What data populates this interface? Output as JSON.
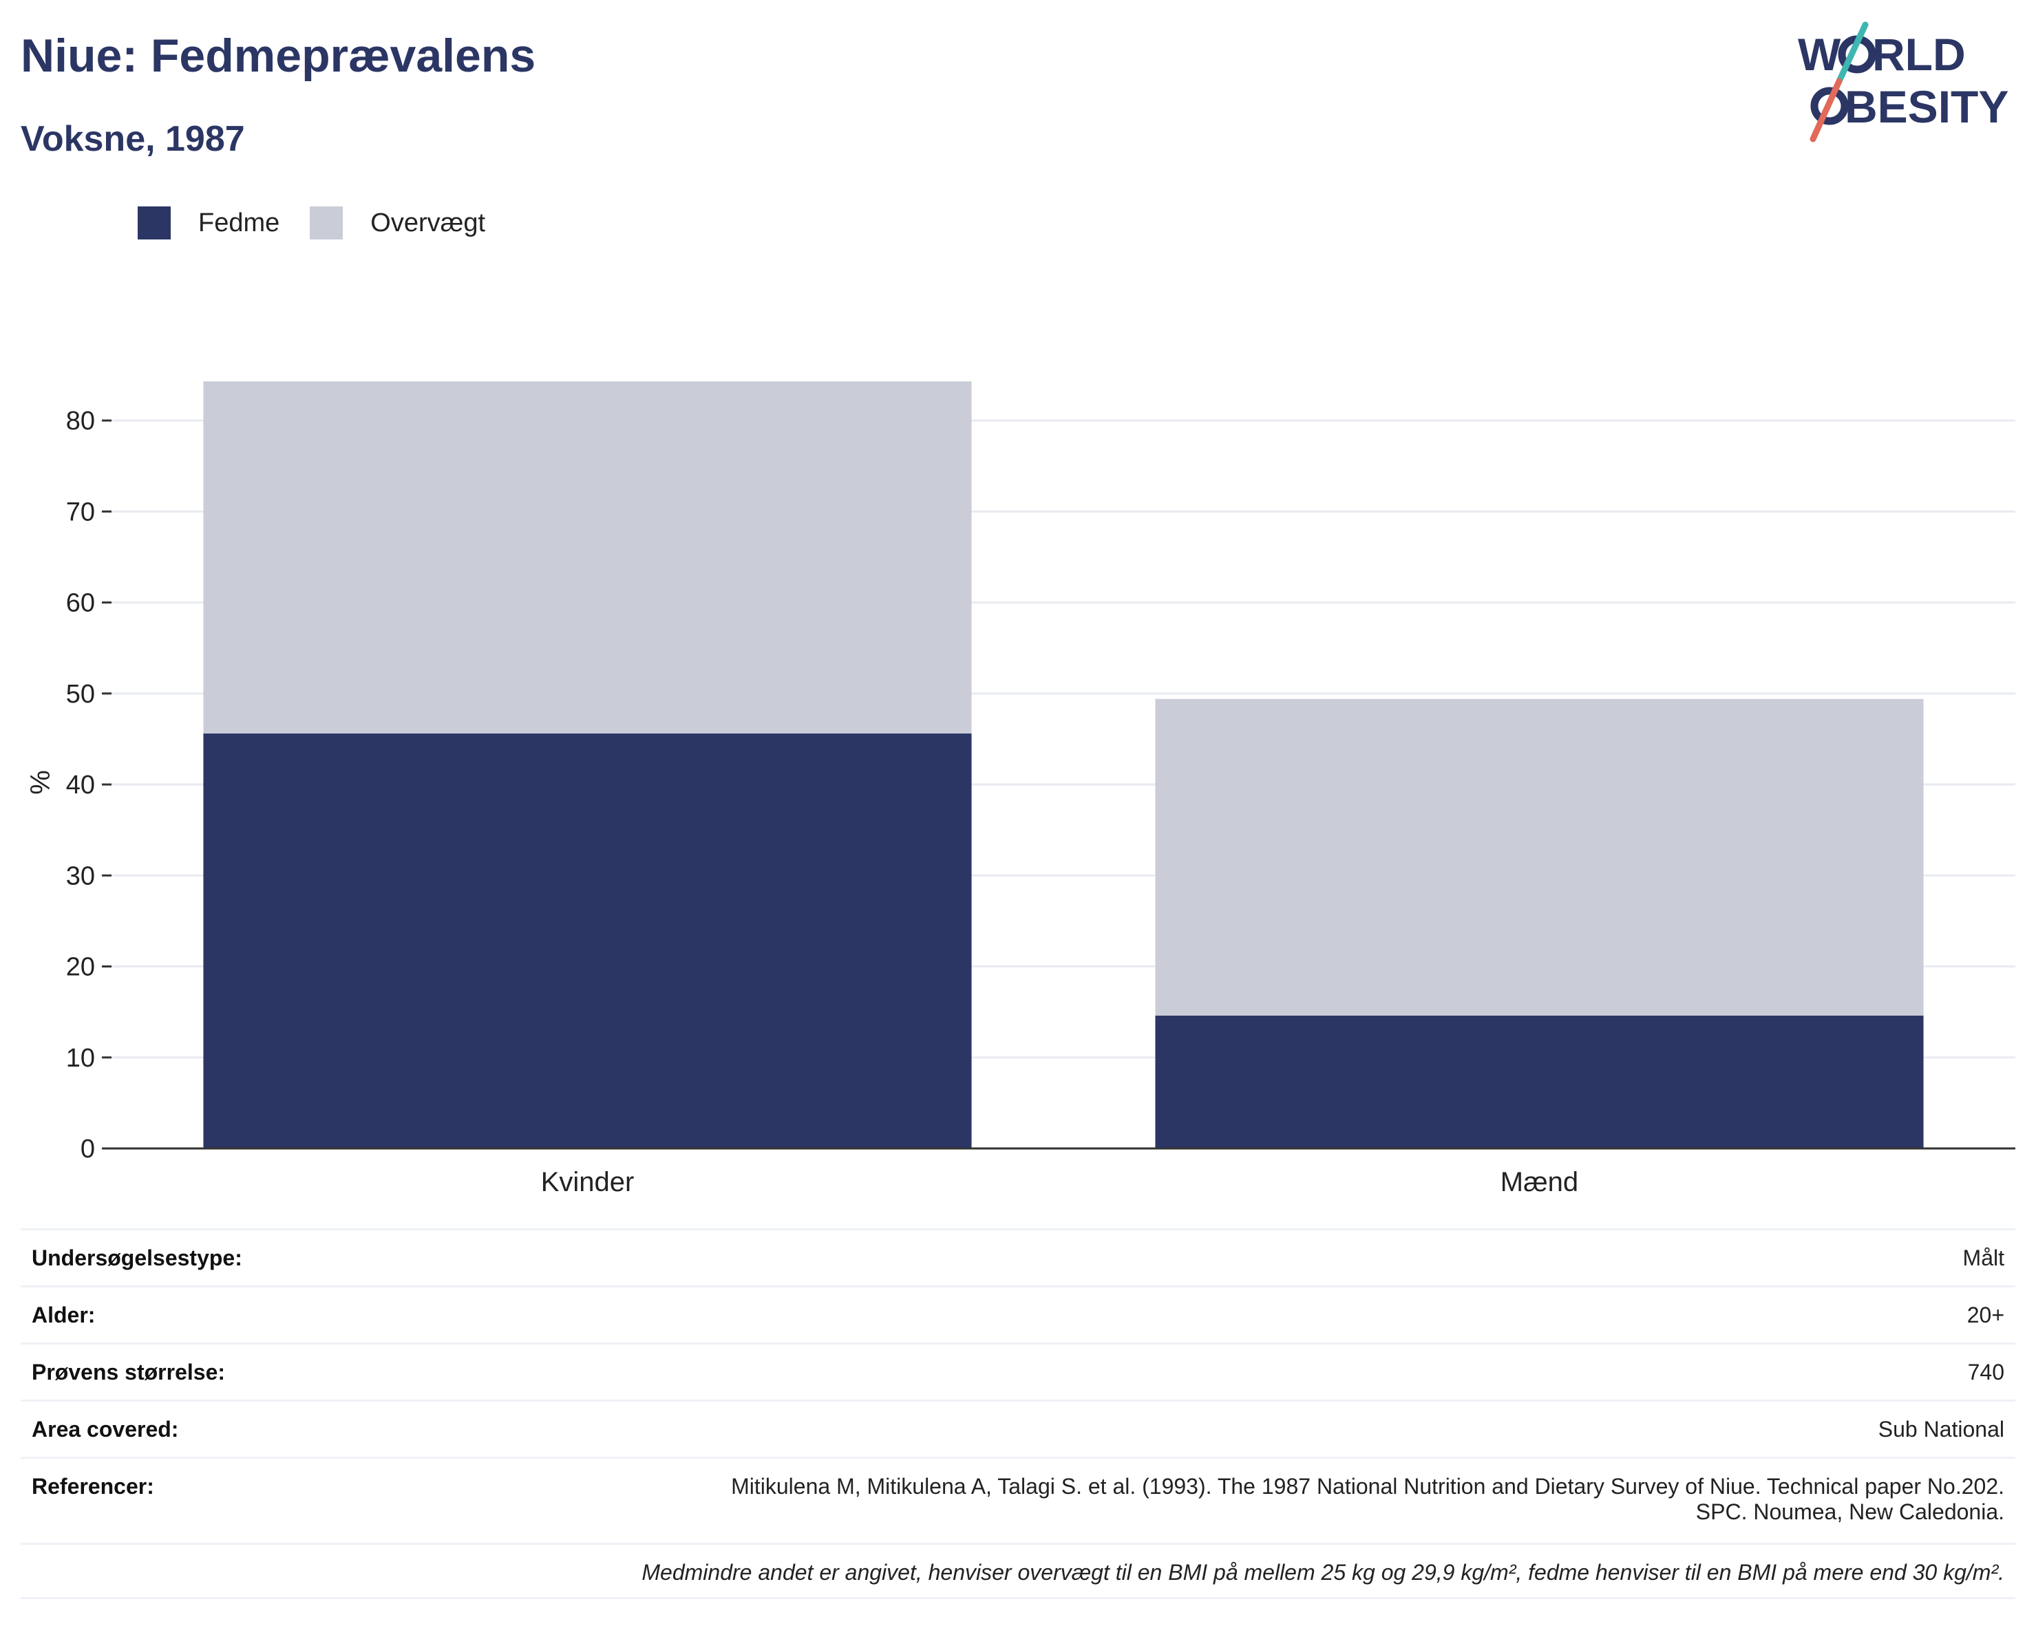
{
  "header": {
    "title": "Niue: Fedmeprævalens",
    "subtitle": "Voksne, 1987"
  },
  "logo": {
    "line1": "W RLD",
    "line2": "BESITY",
    "text": "WORLD OBESITY"
  },
  "legend": {
    "items": [
      {
        "label": "Fedme",
        "color": "#2b3664"
      },
      {
        "label": "Overvægt",
        "color": "#cacdd8"
      }
    ]
  },
  "chart_data": {
    "type": "bar",
    "stacked": true,
    "categories": [
      "Kvinder",
      "Mænd"
    ],
    "series": [
      {
        "name": "Fedme",
        "values": [
          45.6,
          14.6
        ],
        "color": "#2b3664"
      },
      {
        "name": "Overvægt",
        "values": [
          38.7,
          34.8
        ],
        "color": "#cacdd8"
      }
    ],
    "ylabel": "%",
    "ylim": [
      0,
      85
    ],
    "yticks": [
      0,
      10,
      20,
      30,
      40,
      50,
      60,
      70,
      80
    ],
    "grid": true,
    "legend_position": "top-left"
  },
  "info": {
    "rows": [
      {
        "label": "Undersøgelsestype:",
        "value": "Målt"
      },
      {
        "label": "Alder:",
        "value": "20+"
      },
      {
        "label": "Prøvens størrelse:",
        "value": "740"
      },
      {
        "label": "Area covered:",
        "value": "Sub National"
      },
      {
        "label": "Referencer:",
        "value_line1": "Mitikulena M, Mitikulena A, Talagi S. et al. (1993). The 1987 National Nutrition and Dietary Survey of Niue. Technical paper No.202.",
        "value_line2": "SPC. Noumea, New Caledonia."
      }
    ],
    "note": "Medmindre andet er angivet, henviser overvægt til en BMI på mellem 25 kg og 29,9 kg/m², fedme henviser til en BMI på mere end 30 kg/m²."
  }
}
